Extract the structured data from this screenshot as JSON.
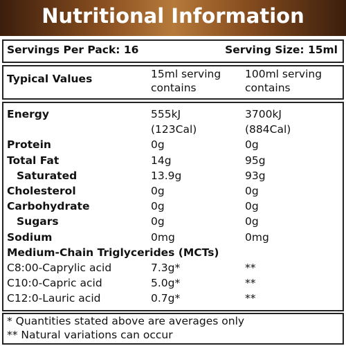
{
  "title": "Nutritional Information",
  "servings": {
    "per_pack": "Servings Per Pack: 16",
    "size": "Serving Size: 15ml"
  },
  "header": {
    "label": "Typical Values",
    "per_serving": "15ml serving contains",
    "per_100ml": "100ml serving contains"
  },
  "nutrients": [
    {
      "label": "Energy",
      "per_serving": [
        "555kJ",
        "(123Cal)"
      ],
      "per_100ml": [
        "3700kJ",
        "(884Cal)"
      ]
    },
    {
      "label": "Protein",
      "per_serving": [
        "0g"
      ],
      "per_100ml": [
        "0g"
      ]
    },
    {
      "label": "Total Fat",
      "per_serving": [
        "14g"
      ],
      "per_100ml": [
        "95g"
      ],
      "sub": [
        {
          "label": "Saturated",
          "per_serving": [
            "13.9g"
          ],
          "per_100ml": [
            "93g"
          ]
        }
      ]
    },
    {
      "label": "Cholesterol",
      "per_serving": [
        "0g"
      ],
      "per_100ml": [
        "0g"
      ]
    },
    {
      "label": "Carbohydrate",
      "per_serving": [
        "0g"
      ],
      "per_100ml": [
        "0g"
      ],
      "sub": [
        {
          "label": "Sugars",
          "per_serving": [
            "0g"
          ],
          "per_100ml": [
            "0g"
          ]
        }
      ]
    },
    {
      "label": "Sodium",
      "per_serving": [
        "0mg"
      ],
      "per_100ml": [
        "0mg"
      ]
    }
  ],
  "mct": {
    "title": "Medium-Chain Triglycerides (MCTs)",
    "items": [
      {
        "label": "C8:00-Caprylic acid",
        "per_serving": "7.3g*",
        "per_100ml": "**"
      },
      {
        "label": "C10:0-Capric acid",
        "per_serving": "5.0g*",
        "per_100ml": "**"
      },
      {
        "label": "C12:0-Lauric acid",
        "per_serving": "0.7g*",
        "per_100ml": "**"
      }
    ]
  },
  "footnotes": [
    "* Quantities stated above are averages only",
    "** Natural variations can occur"
  ]
}
